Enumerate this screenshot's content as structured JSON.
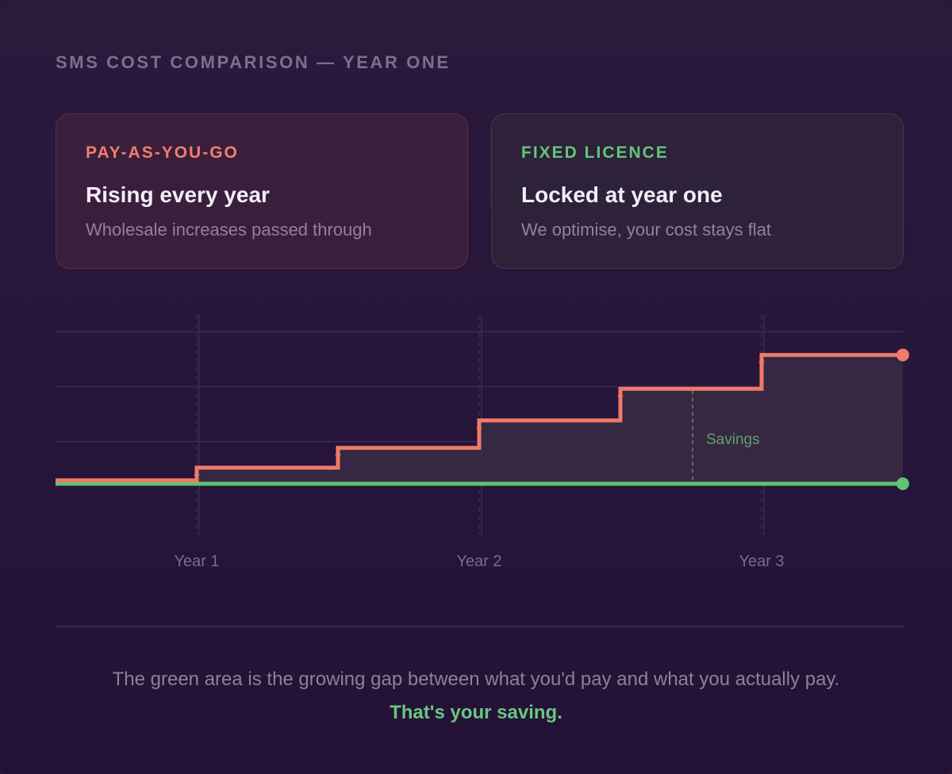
{
  "heading": "SMS COST COMPARISON — YEAR ONE",
  "cards": {
    "payg": {
      "tag": "PAY-AS-YOU-GO",
      "title": "Rising every year",
      "subtitle": "Wholesale increases passed through"
    },
    "fixed": {
      "tag": "FIXED LICENCE",
      "title": "Locked at year one",
      "subtitle": "We optimise, your cost stays flat"
    }
  },
  "chart_data": {
    "type": "line",
    "step": true,
    "x_tick_labels": [
      "Year 1",
      "Year 2",
      "Year 3"
    ],
    "x_ticks": [
      1,
      2,
      3
    ],
    "xlim": [
      0,
      3
    ],
    "ylim": [
      0,
      4
    ],
    "grid": true,
    "series": [
      {
        "name": "PAY-AS-YOU-GO",
        "color": "#f07a68",
        "x": [
          0,
          0.5,
          1.0,
          1.5,
          2.0,
          2.5,
          3.0
        ],
        "values": [
          0.08,
          0.38,
          0.85,
          1.5,
          2.25,
          3.05,
          3.05
        ]
      },
      {
        "name": "FIXED LICENCE",
        "color": "#5fc474",
        "x": [
          0,
          3.0
        ],
        "values": [
          0,
          0
        ]
      }
    ],
    "annotation": {
      "text": "Savings",
      "x": 2.25
    }
  },
  "footer": {
    "note": "The green area is the growing gap between what you'd pay and what you actually pay.",
    "callout": "That's your saving."
  }
}
